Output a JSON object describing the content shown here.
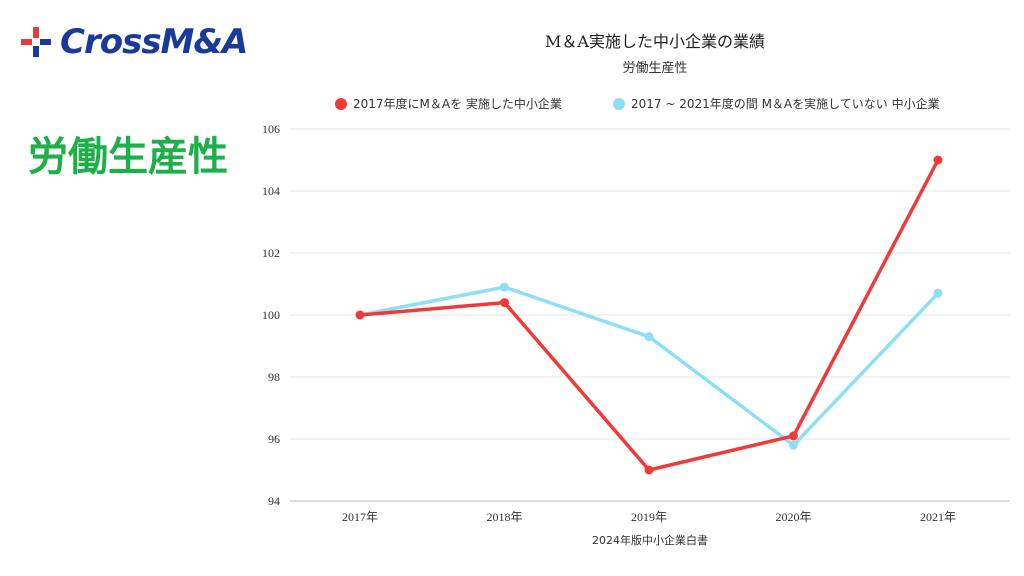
{
  "brand": {
    "logo_text": "CrossM&A",
    "logo_icon": "cross-plus-icon",
    "colors": {
      "blue": "#1a3a9a",
      "red": "#e23b3b"
    }
  },
  "heading": "労働生産性",
  "heading_color": "#1db04a",
  "chart_data": {
    "type": "line",
    "title": "M＆A実施した中小企業の業績",
    "subtitle": "労働生産性",
    "categories": [
      "2017年",
      "2018年",
      "2019年",
      "2020年",
      "2021年"
    ],
    "series": [
      {
        "name": "2017年度にM＆Aを 実施した中小企業",
        "color": "#f03a3a",
        "values": [
          100.0,
          100.4,
          95.0,
          96.1,
          105.0
        ]
      },
      {
        "name": "2017 ~ 2021年度の間 M＆Aを実施していない 中小企業",
        "color": "#8edff5",
        "values": [
          100.0,
          100.9,
          99.3,
          95.8,
          100.7
        ]
      }
    ],
    "ylim": [
      94,
      106
    ],
    "yticks": [
      94,
      96,
      98,
      100,
      102,
      104,
      106
    ],
    "grid": true,
    "legend_position": "top",
    "source": "2024年版中小企業白書"
  }
}
